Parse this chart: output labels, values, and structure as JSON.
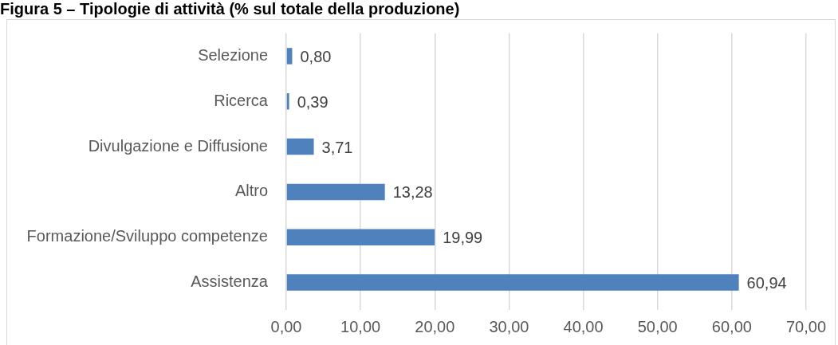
{
  "chart_data": {
    "type": "bar",
    "orientation": "horizontal",
    "title": "Figura 5 – Tipologie di attività (% sul totale della produzione)",
    "categories": [
      "Selezione",
      "Ricerca",
      "Divulgazione e Diffusione",
      "Altro",
      "Formazione/Sviluppo competenze",
      "Assistenza"
    ],
    "values": [
      0.8,
      0.39,
      3.71,
      13.28,
      19.99,
      60.94
    ],
    "color": "#4f81bd",
    "value_labels": [
      "0,80",
      "0,39",
      "3,71",
      "13,28",
      "19,99",
      "60,94"
    ],
    "xlim": [
      0,
      70
    ],
    "xticks": [
      {
        "value": 0,
        "label": "0,00"
      },
      {
        "value": 10,
        "label": "10,00"
      },
      {
        "value": 20,
        "label": "20,00"
      },
      {
        "value": 30,
        "label": "30,00"
      },
      {
        "value": 40,
        "label": "40,00"
      },
      {
        "value": 50,
        "label": "50,00"
      },
      {
        "value": 60,
        "label": "60,00"
      },
      {
        "value": 70,
        "label": "70,00"
      }
    ],
    "grid": "x"
  }
}
